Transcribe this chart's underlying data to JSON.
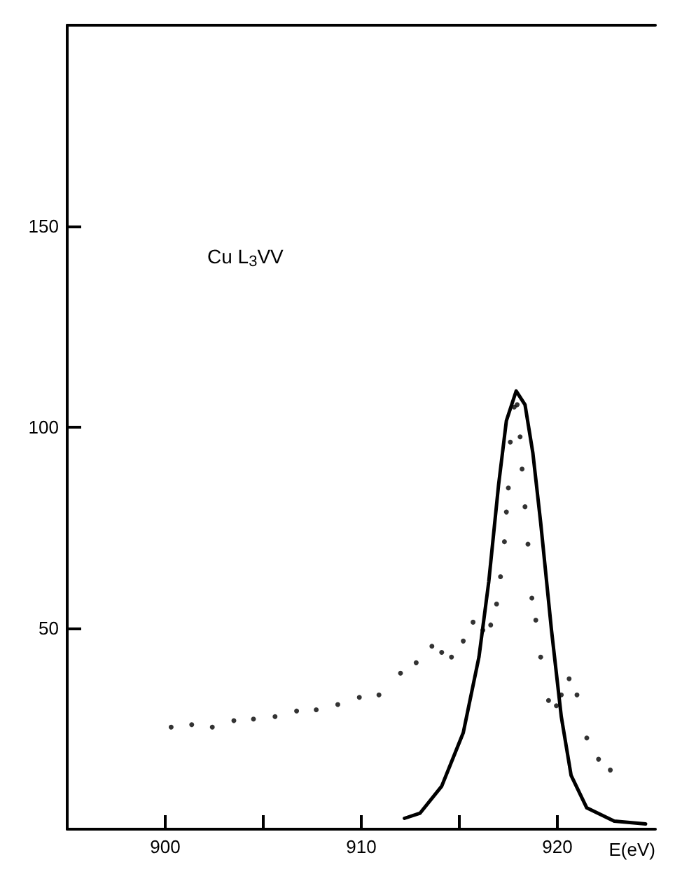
{
  "chart_data": {
    "type": "scatter",
    "xlabel": "E(eV)",
    "annotations": [
      "Cu L$_{3}$VV"
    ],
    "xlim": [
      895,
      925
    ],
    "ylim": [
      0,
      200
    ],
    "xticks": [
      900,
      {
        "value": 905,
        "label": null
      },
      910,
      {
        "value": 915,
        "label": null
      },
      920
    ],
    "yticks": [
      50,
      100,
      150
    ],
    "series": [
      {
        "marker": "circle",
        "color": "#000000",
        "x": [
          900.3,
          901.35,
          902.4,
          903.5,
          904.5,
          905.6,
          906.7,
          907.7,
          908.8,
          909.9,
          910.9,
          912.0,
          912.8,
          913.6,
          914.1,
          914.6,
          915.2,
          915.7,
          916.2,
          916.6,
          916.9,
          917.1,
          917.3,
          917.4,
          917.5,
          917.6,
          917.8,
          917.95,
          918.1,
          918.2,
          918.35,
          918.5,
          918.7,
          918.9,
          919.15,
          919.55,
          919.95,
          920.2,
          920.6,
          921.0,
          921.5,
          922.1,
          922.7
        ],
        "values": [
          25.4,
          26,
          25.4,
          27,
          27.4,
          28,
          29.4,
          29.7,
          31,
          32.8,
          33.4,
          38.8,
          41.4,
          45.5,
          44,
          42.8,
          46.8,
          51.5,
          49.5,
          50.8,
          56,
          62.8,
          71.5,
          78.9,
          84.9,
          96.3,
          105,
          105.6,
          97.6,
          89.6,
          80.2,
          70.9,
          57.5,
          52,
          42.8,
          32,
          30.7,
          33.4,
          37.4,
          33.4,
          22.7,
          17.4,
          14.7
        ]
      },
      {
        "type": "line",
        "marker": "none",
        "line_style": "solid",
        "color": "#000000",
        "x": [
          912.2,
          913.0,
          914.1,
          915.2,
          916.0,
          916.5,
          917.0,
          917.4,
          917.9,
          918.35,
          918.75,
          919.15,
          919.7,
          920.2,
          920.7,
          921.5,
          922.9,
          924.5
        ],
        "values": [
          2.7,
          4,
          10.7,
          24,
          42.8,
          61.5,
          85.6,
          101.6,
          109,
          105.6,
          93.6,
          76.2,
          49.5,
          28,
          13.4,
          5.3,
          2,
          1.3
        ]
      }
    ]
  }
}
